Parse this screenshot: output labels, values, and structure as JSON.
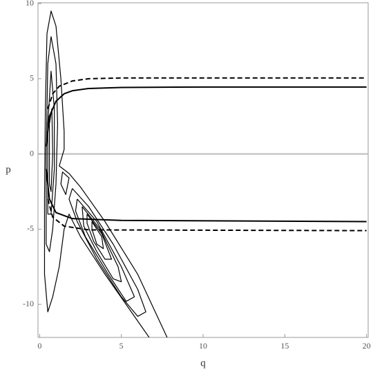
{
  "chart_data": {
    "type": "line",
    "x_label": "q",
    "y_label": "p",
    "color": "#000000",
    "xlim": [
      -0.1,
      20.1
    ],
    "ylim": [
      -12.2,
      10.05
    ],
    "xticks": [
      0,
      5,
      10,
      15,
      20
    ],
    "yticks": [
      -10,
      -5,
      0,
      5,
      10
    ],
    "series": [
      {
        "style": "solid",
        "x": [
          0.4,
          0.6,
          1,
          1.5,
          2,
          3,
          5,
          10,
          20
        ],
        "values": [
          0.5,
          2.5,
          3.5,
          4,
          4.2,
          4.35,
          4.42,
          4.45,
          4.45
        ]
      },
      {
        "style": "dashed",
        "x": [
          0.5,
          0.8,
          1.2,
          2,
          3,
          5,
          20
        ],
        "values": [
          3,
          4,
          4.5,
          4.85,
          5,
          5.05,
          5.05
        ]
      },
      {
        "style": "solid",
        "x": [
          0.4,
          0.6,
          1,
          2,
          5,
          20
        ],
        "values": [
          -1,
          -3,
          -3.9,
          -4.3,
          -4.42,
          -4.5
        ]
      },
      {
        "style": "dashed",
        "x": [
          0.5,
          0.8,
          1.5,
          3,
          20
        ],
        "values": [
          -3,
          -4.2,
          -4.8,
          -5.05,
          -5.1
        ]
      },
      {
        "style": "contour",
        "x": [
          6.7,
          4,
          2.5,
          1.8,
          1.5,
          1.2,
          0.8,
          0.5,
          0.3,
          0.3,
          0.35,
          0.45,
          0.7,
          1,
          1.3,
          1.5,
          1.5,
          1.2,
          1.8,
          2.5,
          4,
          6,
          7.8
        ],
        "values": [
          -12.2,
          -8,
          -5.5,
          -4,
          -5,
          -7.5,
          -9.5,
          -10.5,
          -8,
          -3,
          3,
          8,
          9.5,
          8.5,
          5,
          1.5,
          0.3,
          -0.8,
          -1.3,
          -2.2,
          -4.5,
          -8,
          -12.2
        ]
      },
      {
        "style": "contour",
        "x": [
          0.4,
          0.4,
          0.5,
          0.7,
          1,
          1.1,
          1,
          0.8,
          0.6,
          0.4
        ],
        "values": [
          -6,
          0,
          6,
          7.8,
          6,
          2,
          -2,
          -5,
          -6.5,
          -6
        ]
      },
      {
        "style": "contour",
        "x": [
          0.5,
          0.5,
          0.7,
          0.9,
          0.9,
          0.7,
          0.5
        ],
        "values": [
          -4,
          2,
          5.5,
          3,
          -1,
          -4,
          -4
        ]
      },
      {
        "style": "contour",
        "x": [
          0.6,
          0.6,
          0.75,
          0.8,
          0.7,
          0.6
        ],
        "values": [
          -2,
          2,
          3,
          0,
          -2.5,
          -2
        ]
      },
      {
        "style": "contour",
        "x": [
          1.3,
          1.4,
          1.8,
          1.6,
          1.3
        ],
        "values": [
          -2,
          -1.2,
          -1.6,
          -2.7,
          -2
        ]
      },
      {
        "style": "contour",
        "x": [
          2,
          3,
          4.5,
          6,
          6.5,
          6,
          5,
          3.5,
          2.3,
          1.8,
          2
        ],
        "values": [
          -2.3,
          -3.5,
          -6,
          -9,
          -10.5,
          -10.8,
          -9.5,
          -7,
          -4.5,
          -3,
          -2.3
        ]
      },
      {
        "style": "contour",
        "x": [
          2.3,
          3.5,
          5,
          5.8,
          5.3,
          4.2,
          2.8,
          2.2,
          2.3
        ],
        "values": [
          -3,
          -4.5,
          -7.5,
          -9.5,
          -9.8,
          -8,
          -5.5,
          -3.8,
          -3
        ]
      },
      {
        "style": "contour",
        "x": [
          2.6,
          3.7,
          4.8,
          5,
          4.5,
          3.5,
          2.7,
          2.6
        ],
        "values": [
          -3.5,
          -5,
          -7.5,
          -8.5,
          -8.3,
          -6.5,
          -4.8,
          -3.5
        ]
      },
      {
        "style": "contour",
        "x": [
          2.9,
          3.8,
          4.4,
          4,
          3.3,
          2.9,
          2.9
        ],
        "values": [
          -4,
          -5.3,
          -7,
          -7,
          -5.8,
          -4.6,
          -4
        ]
      },
      {
        "style": "contour",
        "x": [
          3.2,
          3.8,
          3.9,
          3.5,
          3.2,
          3.2
        ],
        "values": [
          -4.5,
          -5.5,
          -6.3,
          -6,
          -5,
          -4.5
        ]
      }
    ]
  }
}
